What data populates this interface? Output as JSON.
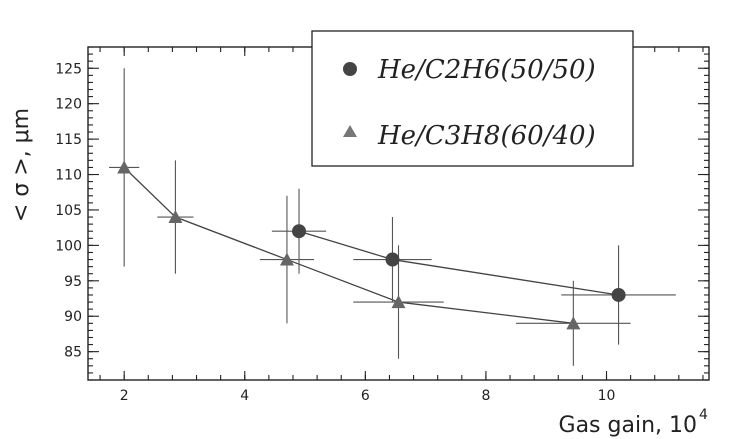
{
  "chart_data": {
    "type": "scatter",
    "xlabel": "Gas gain, 10",
    "xlabel_exp": "4",
    "ylabel": "< σ >, μm",
    "xlim": [
      1.4,
      11.7
    ],
    "ylim": [
      81,
      128
    ],
    "x_ticks": [
      2,
      4,
      6,
      8,
      10
    ],
    "y_ticks": [
      85,
      90,
      95,
      100,
      105,
      110,
      115,
      120,
      125
    ],
    "grid": false,
    "legend_position": "top-right",
    "series": [
      {
        "name": "He/C2H6(50/50)",
        "marker": "circle",
        "color": "#444444",
        "points": [
          {
            "x": 4.9,
            "y": 102,
            "xerr": 0.45,
            "yerr": 6
          },
          {
            "x": 6.45,
            "y": 98,
            "xerr": 0.65,
            "yerr": 6
          },
          {
            "x": 10.2,
            "y": 93,
            "xerr": 0.95,
            "yerr": 7
          }
        ]
      },
      {
        "name": "He/C3H8(60/40)",
        "marker": "triangle",
        "color": "#666666",
        "points": [
          {
            "x": 2.0,
            "y": 111,
            "xerr": 0.25,
            "yerr": 14
          },
          {
            "x": 2.85,
            "y": 104,
            "xerr": 0.3,
            "yerr": 8
          },
          {
            "x": 4.7,
            "y": 98,
            "xerr": 0.45,
            "yerr": 9
          },
          {
            "x": 6.55,
            "y": 92,
            "xerr": 0.75,
            "yerr": 8
          },
          {
            "x": 9.45,
            "y": 89,
            "xerr": 0.95,
            "yerr": 6
          }
        ]
      }
    ]
  }
}
